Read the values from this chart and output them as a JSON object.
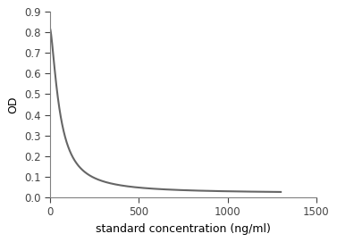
{
  "xlabel": "standard concentration (ng/ml)",
  "ylabel": "OD",
  "xlim": [
    0,
    1500
  ],
  "ylim": [
    0,
    0.9
  ],
  "xticks": [
    0,
    500,
    1000,
    1500
  ],
  "yticks": [
    0,
    0.1,
    0.2,
    0.3,
    0.4,
    0.5,
    0.6,
    0.7,
    0.8,
    0.9
  ],
  "curve_color": "#666666",
  "curve_linewidth": 1.5,
  "background_color": "#ffffff",
  "A": 0.82,
  "D": 0.018,
  "C": 55.0,
  "B_hill": 1.5,
  "xlabel_fontsize": 9,
  "ylabel_fontsize": 9,
  "tick_fontsize": 8.5,
  "spine_color": "#808080"
}
